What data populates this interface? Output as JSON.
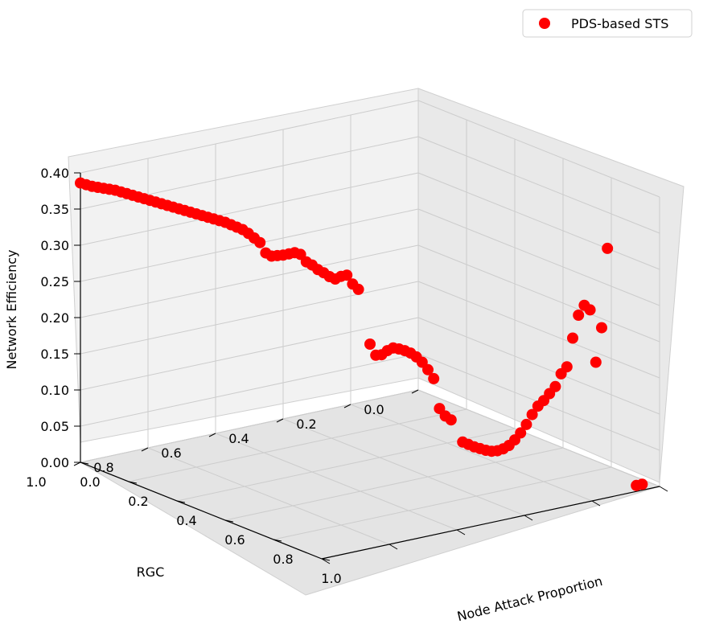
{
  "chart_data": {
    "type": "scatter",
    "projection": "3d",
    "legend_position": "top-right",
    "grid": true,
    "xlabel": "Node Attack Proportion",
    "ylabel": "RGC",
    "zlabel": "Network Efficiency",
    "xlim": [
      0.0,
      1.0
    ],
    "ylim": [
      0.0,
      1.0
    ],
    "zlim": [
      0.0,
      0.4
    ],
    "x_ticks": [
      "0.0",
      "0.2",
      "0.4",
      "0.6",
      "0.8",
      "1.0"
    ],
    "y_ticks": [
      "0.0",
      "0.2",
      "0.4",
      "0.6",
      "0.8",
      "1.0"
    ],
    "z_ticks": [
      "0.00",
      "0.05",
      "0.10",
      "0.15",
      "0.20",
      "0.25",
      "0.30",
      "0.35",
      "0.40"
    ],
    "series": [
      {
        "name": "PDS-based STS",
        "color": "#ff0000",
        "marker": "circle",
        "points": [
          [
            0.0,
            1.0,
            0.386
          ],
          [
            0.01,
            0.99,
            0.384
          ],
          [
            0.02,
            0.98,
            0.382
          ],
          [
            0.03,
            0.97,
            0.381
          ],
          [
            0.04,
            0.96,
            0.38
          ],
          [
            0.05,
            0.95,
            0.379
          ],
          [
            0.06,
            0.94,
            0.378
          ],
          [
            0.07,
            0.93,
            0.376
          ],
          [
            0.08,
            0.92,
            0.374
          ],
          [
            0.09,
            0.91,
            0.372
          ],
          [
            0.1,
            0.9,
            0.37
          ],
          [
            0.11,
            0.89,
            0.368
          ],
          [
            0.12,
            0.88,
            0.366
          ],
          [
            0.13,
            0.87,
            0.364
          ],
          [
            0.14,
            0.86,
            0.362
          ],
          [
            0.15,
            0.85,
            0.36
          ],
          [
            0.16,
            0.84,
            0.358
          ],
          [
            0.17,
            0.83,
            0.356
          ],
          [
            0.18,
            0.82,
            0.354
          ],
          [
            0.19,
            0.81,
            0.352
          ],
          [
            0.2,
            0.8,
            0.35
          ],
          [
            0.21,
            0.79,
            0.348
          ],
          [
            0.22,
            0.78,
            0.346
          ],
          [
            0.23,
            0.77,
            0.344
          ],
          [
            0.24,
            0.76,
            0.342
          ],
          [
            0.25,
            0.75,
            0.34
          ],
          [
            0.26,
            0.74,
            0.337
          ],
          [
            0.27,
            0.73,
            0.334
          ],
          [
            0.28,
            0.72,
            0.331
          ],
          [
            0.29,
            0.71,
            0.326
          ],
          [
            0.3,
            0.7,
            0.32
          ],
          [
            0.31,
            0.69,
            0.314
          ],
          [
            0.32,
            0.68,
            0.3
          ],
          [
            0.33,
            0.67,
            0.296
          ],
          [
            0.34,
            0.66,
            0.297
          ],
          [
            0.35,
            0.65,
            0.298
          ],
          [
            0.36,
            0.64,
            0.3
          ],
          [
            0.37,
            0.63,
            0.302
          ],
          [
            0.38,
            0.62,
            0.3
          ],
          [
            0.39,
            0.61,
            0.29
          ],
          [
            0.4,
            0.6,
            0.286
          ],
          [
            0.41,
            0.59,
            0.28
          ],
          [
            0.42,
            0.58,
            0.276
          ],
          [
            0.43,
            0.57,
            0.271
          ],
          [
            0.44,
            0.56,
            0.268
          ],
          [
            0.45,
            0.55,
            0.272
          ],
          [
            0.46,
            0.54,
            0.274
          ],
          [
            0.47,
            0.53,
            0.262
          ],
          [
            0.48,
            0.52,
            0.255
          ],
          [
            0.5,
            0.5,
            0.18
          ],
          [
            0.51,
            0.49,
            0.165
          ],
          [
            0.52,
            0.48,
            0.166
          ],
          [
            0.53,
            0.47,
            0.172
          ],
          [
            0.54,
            0.46,
            0.176
          ],
          [
            0.55,
            0.45,
            0.175
          ],
          [
            0.56,
            0.44,
            0.173
          ],
          [
            0.57,
            0.43,
            0.17
          ],
          [
            0.58,
            0.42,
            0.165
          ],
          [
            0.59,
            0.41,
            0.158
          ],
          [
            0.6,
            0.4,
            0.148
          ],
          [
            0.61,
            0.39,
            0.136
          ],
          [
            0.62,
            0.38,
            0.095
          ],
          [
            0.63,
            0.37,
            0.085
          ],
          [
            0.64,
            0.36,
            0.08
          ],
          [
            0.66,
            0.34,
            0.05
          ],
          [
            0.67,
            0.33,
            0.047
          ],
          [
            0.68,
            0.32,
            0.044
          ],
          [
            0.69,
            0.31,
            0.042
          ],
          [
            0.7,
            0.3,
            0.04
          ],
          [
            0.71,
            0.29,
            0.039
          ],
          [
            0.72,
            0.28,
            0.04
          ],
          [
            0.73,
            0.27,
            0.043
          ],
          [
            0.74,
            0.26,
            0.048
          ],
          [
            0.75,
            0.25,
            0.056
          ],
          [
            0.76,
            0.24,
            0.066
          ],
          [
            0.77,
            0.23,
            0.078
          ],
          [
            0.78,
            0.22,
            0.092
          ],
          [
            0.79,
            0.21,
            0.104
          ],
          [
            0.8,
            0.2,
            0.112
          ],
          [
            0.81,
            0.19,
            0.122
          ],
          [
            0.82,
            0.18,
            0.132
          ],
          [
            0.83,
            0.17,
            0.15
          ],
          [
            0.84,
            0.16,
            0.16
          ],
          [
            0.85,
            0.15,
            0.2
          ],
          [
            0.86,
            0.14,
            0.232
          ],
          [
            0.87,
            0.13,
            0.246
          ],
          [
            0.88,
            0.12,
            0.24
          ],
          [
            0.89,
            0.11,
            0.168
          ],
          [
            0.9,
            0.1,
            0.216
          ],
          [
            0.91,
            0.09,
            0.326
          ],
          [
            0.96,
            0.04,
            0.0
          ],
          [
            0.97,
            0.03,
            0.002
          ]
        ]
      }
    ]
  }
}
